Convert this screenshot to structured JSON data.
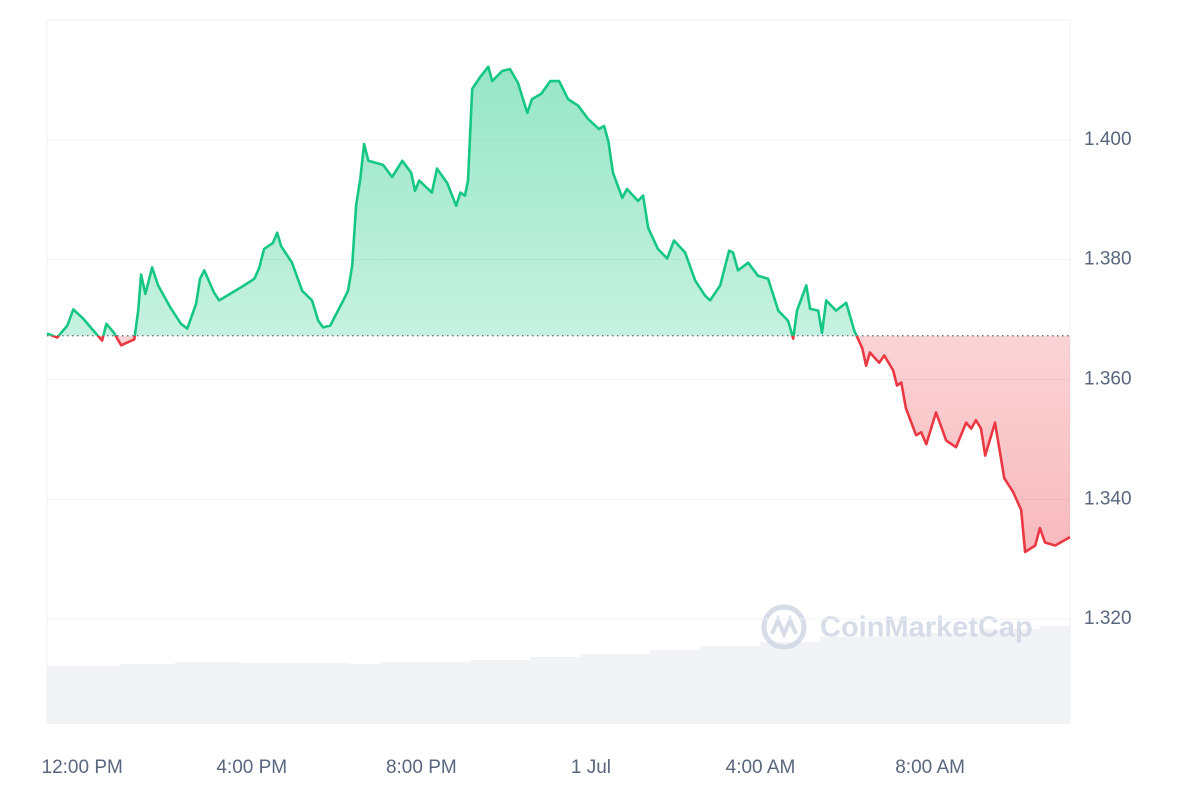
{
  "chart_data": {
    "type": "line",
    "watermark": "CoinMarketCap",
    "x": [
      -0.83,
      -0.59,
      -0.35,
      -0.21,
      0.02,
      0.26,
      0.47,
      0.57,
      0.75,
      0.92,
      1.23,
      1.32,
      1.39,
      1.49,
      1.65,
      1.79,
      2.08,
      2.33,
      2.48,
      2.69,
      2.78,
      2.88,
      3.11,
      3.23,
      3.47,
      3.82,
      4.06,
      4.17,
      4.29,
      4.5,
      4.6,
      4.69,
      4.95,
      5.19,
      5.42,
      5.57,
      5.68,
      5.85,
      6.16,
      6.27,
      6.37,
      6.46,
      6.56,
      6.65,
      6.75,
      7.1,
      7.31,
      7.55,
      7.76,
      7.85,
      7.95,
      8.25,
      8.37,
      8.61,
      8.82,
      8.92,
      9.03,
      9.1,
      9.2,
      9.39,
      9.58,
      9.67,
      9.91,
      10.09,
      10.28,
      10.5,
      10.61,
      10.83,
      11.04,
      11.25,
      11.46,
      11.7,
      11.93,
      12.19,
      12.31,
      12.41,
      12.52,
      12.74,
      12.85,
      13.11,
      13.23,
      13.35,
      13.58,
      13.8,
      13.96,
      14.22,
      14.46,
      14.69,
      14.81,
      15.05,
      15.26,
      15.35,
      15.47,
      15.71,
      15.94,
      16.18,
      16.42,
      16.65,
      16.77,
      16.86,
      17.08,
      17.17,
      17.36,
      17.45,
      17.55,
      17.78,
      18.02,
      18.21,
      18.4,
      18.49,
      18.58,
      18.8,
      18.92,
      19.13,
      19.22,
      19.32,
      19.43,
      19.67,
      19.79,
      19.91,
      20.14,
      20.38,
      20.61,
      20.85,
      20.97,
      21.08,
      21.2,
      21.3,
      21.53,
      21.65,
      21.75,
      21.96,
      22.15,
      22.24,
      22.48,
      22.59,
      22.71,
      22.95,
      23.3
    ],
    "values": [
      1.3677,
      1.367,
      1.369,
      1.3717,
      1.3702,
      1.3682,
      1.3665,
      1.3693,
      1.3678,
      1.3657,
      1.3667,
      1.3715,
      1.3775,
      1.3743,
      1.3787,
      1.3757,
      1.372,
      1.3693,
      1.3685,
      1.3727,
      1.3768,
      1.3782,
      1.3745,
      1.3732,
      1.3742,
      1.3757,
      1.3768,
      1.3785,
      1.3818,
      1.3828,
      1.3845,
      1.3823,
      1.3795,
      1.3748,
      1.3732,
      1.3698,
      1.3687,
      1.369,
      1.3732,
      1.3748,
      1.379,
      1.389,
      1.3935,
      1.3993,
      1.3965,
      1.3958,
      1.3938,
      1.3965,
      1.3945,
      1.3915,
      1.3932,
      1.3912,
      1.3952,
      1.3928,
      1.389,
      1.3912,
      1.3907,
      1.3932,
      1.4085,
      1.4105,
      1.4122,
      1.4098,
      1.4115,
      1.4118,
      1.4095,
      1.4045,
      1.4068,
      1.4077,
      1.4098,
      1.4098,
      1.4068,
      1.4057,
      1.4035,
      1.4018,
      1.4023,
      1.3998,
      1.3945,
      1.3903,
      1.3918,
      1.3898,
      1.3907,
      1.3853,
      1.3818,
      1.3802,
      1.3832,
      1.3812,
      1.3765,
      1.374,
      1.3732,
      1.3757,
      1.3815,
      1.3812,
      1.3782,
      1.3795,
      1.3773,
      1.3768,
      1.3715,
      1.3698,
      1.3668,
      1.3715,
      1.3757,
      1.3718,
      1.3715,
      1.3678,
      1.3732,
      1.3715,
      1.3728,
      1.3682,
      1.3652,
      1.3623,
      1.3645,
      1.3628,
      1.364,
      1.3615,
      1.359,
      1.3595,
      1.3552,
      1.3507,
      1.3512,
      1.3492,
      1.3545,
      1.3498,
      1.3487,
      1.3528,
      1.3518,
      1.3532,
      1.3518,
      1.3473,
      1.3528,
      1.3478,
      1.3435,
      1.3412,
      1.3382,
      1.3312,
      1.3323,
      1.3352,
      1.3328,
      1.3323,
      1.3337
    ],
    "baseline": 1.3673,
    "up_color": "#16c784",
    "down_color": "#ea3943",
    "xlim": [
      -0.83,
      23.3
    ],
    "xticks": [
      {
        "value": 0,
        "label": "12:00 PM"
      },
      {
        "value": 4,
        "label": "4:00 PM"
      },
      {
        "value": 8,
        "label": "8:00 PM"
      },
      {
        "value": 12,
        "label": "1 Jul"
      },
      {
        "value": 16,
        "label": "4:00 AM"
      },
      {
        "value": 20,
        "label": "8:00 AM"
      }
    ],
    "ylim": [
      1.3025,
      1.42
    ],
    "yticks": [
      {
        "value": 1.32,
        "label": "1.320"
      },
      {
        "value": 1.34,
        "label": "1.340"
      },
      {
        "value": 1.36,
        "label": "1.360"
      },
      {
        "value": 1.38,
        "label": "1.380"
      },
      {
        "value": 1.4,
        "label": "1.400"
      }
    ],
    "grid": true
  }
}
